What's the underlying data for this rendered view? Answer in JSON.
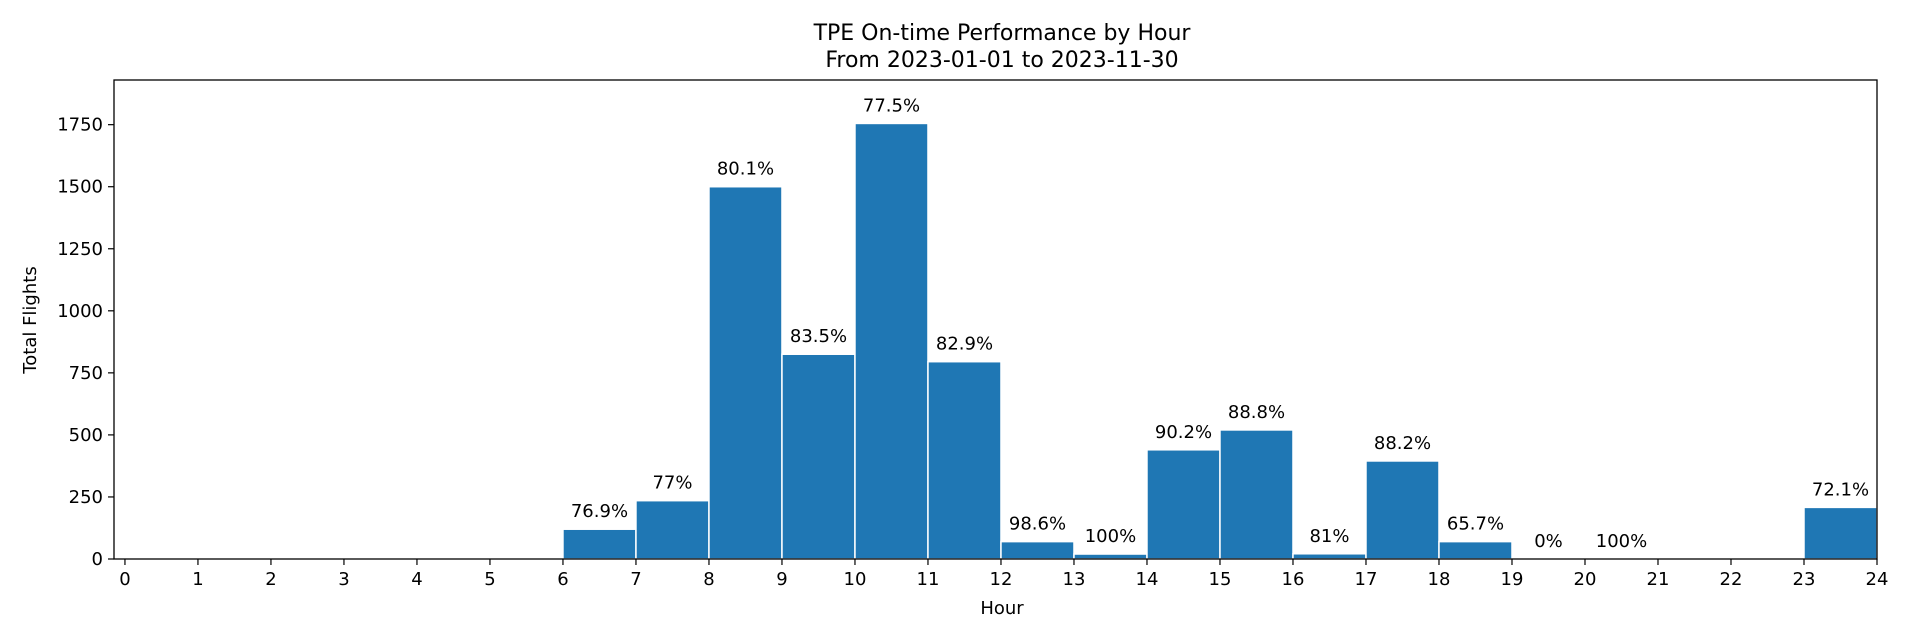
{
  "chart_data": {
    "type": "bar",
    "title": "TPE On-time Performance by Hour",
    "subtitle": "From 2023-01-01 to 2023-11-30",
    "xlabel": "Hour",
    "ylabel": "Total Flights",
    "xlim": [
      -0.15,
      24.0
    ],
    "ylim": [
      0,
      1930
    ],
    "xticks": [
      "0",
      "1",
      "2",
      "3",
      "4",
      "5",
      "6",
      "7",
      "8",
      "9",
      "10",
      "11",
      "12",
      "13",
      "14",
      "15",
      "16",
      "17",
      "18",
      "19",
      "20",
      "21",
      "22",
      "23",
      "24"
    ],
    "yticks": [
      "0",
      "250",
      "500",
      "750",
      "1000",
      "1250",
      "1500",
      "1750"
    ],
    "grid": false,
    "bar_color": "#1f77b4",
    "bars": [
      {
        "hour": 6,
        "total": 120,
        "label": "76.9%"
      },
      {
        "hour": 7,
        "total": 235,
        "label": "77%"
      },
      {
        "hour": 8,
        "total": 1500,
        "label": "80.1%"
      },
      {
        "hour": 9,
        "total": 825,
        "label": "83.5%"
      },
      {
        "hour": 10,
        "total": 1755,
        "label": "77.5%"
      },
      {
        "hour": 11,
        "total": 795,
        "label": "82.9%"
      },
      {
        "hour": 12,
        "total": 70,
        "label": "98.6%"
      },
      {
        "hour": 13,
        "total": 20,
        "label": "100%"
      },
      {
        "hour": 14,
        "total": 440,
        "label": "90.2%"
      },
      {
        "hour": 15,
        "total": 520,
        "label": "88.8%"
      },
      {
        "hour": 16,
        "total": 21,
        "label": "81%"
      },
      {
        "hour": 17,
        "total": 395,
        "label": "88.2%"
      },
      {
        "hour": 18,
        "total": 70,
        "label": "65.7%"
      },
      {
        "hour": 19,
        "total": 0,
        "label": "0%"
      },
      {
        "hour": 20,
        "total": 1,
        "label": "100%"
      },
      {
        "hour": 23,
        "total": 208,
        "label": "72.1%"
      }
    ]
  }
}
